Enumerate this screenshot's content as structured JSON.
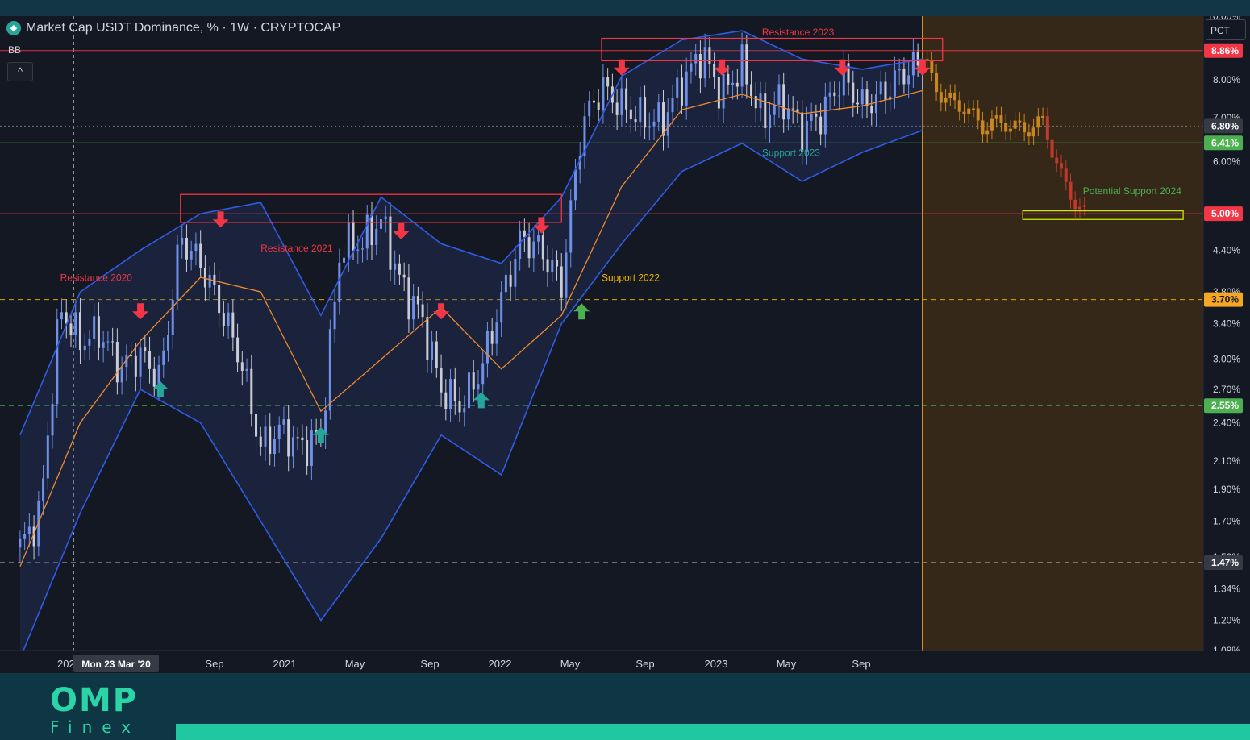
{
  "header": {
    "title": "Market Cap USDT Dominance, % · 1W · CRYPTOCAP",
    "indicator": "BB",
    "collapse_symbol": "^",
    "scale_button": "PCT",
    "logo_icon": "diamond-icon"
  },
  "brand": {
    "name": "OMP",
    "sub": "Finex"
  },
  "colors": {
    "background": "#141823",
    "bb_line": "#2f5ce6",
    "basis_line": "#f08a2e",
    "resistance": "#f23645",
    "support_green": "#4caf50",
    "support_teal": "#26a69a",
    "support_yellow": "#f0b400",
    "forecast_zone": "#3a2a17",
    "footer": "#0f3645",
    "footer_bar": "#21c7a1"
  },
  "chart_data": {
    "type": "line",
    "symbol": "USDT.D",
    "timeframe": "1W",
    "scale": "log",
    "ylim": [
      1.08,
      10.0
    ],
    "y_ticks": [
      "10.00%",
      "8.00%",
      "7.00%",
      "6.00%",
      "4.40%",
      "3.80%",
      "3.40%",
      "3.00%",
      "2.70%",
      "2.40%",
      "2.10%",
      "1.90%",
      "1.70%",
      "1.50%",
      "1.34%",
      "1.20%",
      "1.08%"
    ],
    "x_ticks": [
      "202",
      "Sep",
      "2021",
      "May",
      "Sep",
      "2022",
      "May",
      "Sep",
      "2023",
      "May",
      "Sep"
    ],
    "crosshair_label": "Mon 23 Mar '20",
    "price_series": {
      "name": "USDT Dominance",
      "x": [
        "2020-01",
        "2020-02",
        "2020-03",
        "2020-04",
        "2020-05",
        "2020-06",
        "2020-07",
        "2020-08",
        "2020-09",
        "2020-10",
        "2020-11",
        "2020-12",
        "2021-01",
        "2021-02",
        "2021-03",
        "2021-04",
        "2021-05",
        "2021-06",
        "2021-07",
        "2021-08",
        "2021-09",
        "2021-10",
        "2021-11",
        "2021-12",
        "2022-01",
        "2022-02",
        "2022-03",
        "2022-04",
        "2022-05",
        "2022-06",
        "2022-07",
        "2022-08",
        "2022-09",
        "2022-10",
        "2022-11",
        "2022-12",
        "2023-01",
        "2023-02",
        "2023-03",
        "2023-04",
        "2023-05",
        "2023-06",
        "2023-07",
        "2023-08",
        "2023-09",
        "2023-10"
      ],
      "y": [
        1.55,
        1.75,
        3.6,
        3.2,
        3.3,
        2.9,
        3.05,
        2.8,
        4.6,
        4.2,
        3.6,
        3.0,
        2.2,
        2.35,
        2.2,
        2.3,
        4.5,
        4.5,
        4.9,
        3.9,
        3.5,
        2.7,
        2.55,
        2.9,
        3.7,
        4.6,
        4.4,
        3.9,
        6.8,
        7.8,
        7.3,
        7.0,
        6.9,
        7.9,
        8.8,
        7.6,
        8.4,
        7.0,
        7.5,
        6.7,
        7.1,
        8.1,
        7.3,
        7.6,
        8.2,
        8.5
      ]
    },
    "forecast_series": {
      "name": "Forecast",
      "x": [
        "2023-10",
        "2023-11",
        "2023-12",
        "2024-01",
        "2024-02",
        "2024-03",
        "2024-04",
        "2024-05",
        "2024-06"
      ],
      "y": [
        8.6,
        7.5,
        7.3,
        6.8,
        6.9,
        6.7,
        6.9,
        5.6,
        5.0
      ]
    },
    "basis_series": {
      "name": "BB Basis",
      "x": [
        "2020-01",
        "2020-04",
        "2020-07",
        "2020-10",
        "2021-01",
        "2021-04",
        "2021-07",
        "2021-10",
        "2022-01",
        "2022-04",
        "2022-07",
        "2022-10",
        "2023-01",
        "2023-04",
        "2023-07",
        "2023-10"
      ],
      "y": [
        1.45,
        2.4,
        3.2,
        4.0,
        3.8,
        2.5,
        3.0,
        3.6,
        2.9,
        3.5,
        5.5,
        7.2,
        7.6,
        7.1,
        7.3,
        7.7
      ]
    },
    "bb_upper": {
      "name": "BB Upper",
      "x": [
        "2020-01",
        "2020-04",
        "2020-07",
        "2020-10",
        "2021-01",
        "2021-04",
        "2021-07",
        "2021-10",
        "2022-01",
        "2022-04",
        "2022-07",
        "2022-10",
        "2023-01",
        "2023-04",
        "2023-07",
        "2023-10"
      ],
      "y": [
        2.3,
        3.8,
        4.4,
        5.0,
        5.2,
        3.5,
        5.3,
        4.5,
        4.2,
        5.3,
        8.1,
        9.2,
        9.5,
        8.6,
        8.3,
        8.6
      ]
    },
    "bb_lower": {
      "name": "BB Lower",
      "x": [
        "2020-01",
        "2020-04",
        "2020-07",
        "2020-10",
        "2021-01",
        "2021-04",
        "2021-07",
        "2021-10",
        "2022-01",
        "2022-04",
        "2022-07",
        "2022-10",
        "2023-01",
        "2023-04",
        "2023-07",
        "2023-10"
      ],
      "y": [
        1.05,
        1.75,
        2.7,
        2.4,
        1.7,
        1.2,
        1.6,
        2.3,
        2.0,
        3.4,
        4.5,
        5.8,
        6.4,
        5.6,
        6.2,
        6.7
      ]
    },
    "horizontal_levels": [
      {
        "value": 8.86,
        "label": "8.86%",
        "style": "solid",
        "color": "#f23645"
      },
      {
        "value": 6.8,
        "label": "6.80%",
        "style": "dotted",
        "color": "#787b86"
      },
      {
        "value": 6.41,
        "label": "6.41%",
        "style": "solid",
        "color": "#4caf50"
      },
      {
        "value": 5.0,
        "label": "5.00%",
        "style": "solid",
        "color": "#f23645"
      },
      {
        "value": 3.7,
        "label": "3.70%",
        "style": "dashed",
        "color": "#f0b400"
      },
      {
        "value": 2.55,
        "label": "2.55%",
        "style": "dashed",
        "color": "#4caf50"
      },
      {
        "value": 1.47,
        "label": "1.47%",
        "style": "dashed",
        "color": "#d1d4dc"
      }
    ],
    "zones": [
      {
        "label": "Resistance 2021",
        "x0": "2020-09",
        "x1": "2022-04",
        "y0": 4.85,
        "y1": 5.35,
        "color": "#f23645"
      },
      {
        "label": "Resistance 2023",
        "x0": "2022-06",
        "x1": "2023-11",
        "y0": 8.55,
        "y1": 9.25,
        "color": "#f23645"
      },
      {
        "label": "Potential Support 2024",
        "x0": "2024-03",
        "x1": "2024-11",
        "y0": 4.9,
        "y1": 5.05,
        "color": "#c8e600"
      }
    ],
    "annotations": [
      {
        "text": "Resistance 2020",
        "x": "2020-03",
        "y": 3.95,
        "color": "#f23645"
      },
      {
        "text": "Resistance 2021",
        "x": "2021-01",
        "y": 4.38,
        "color": "#f23645"
      },
      {
        "text": "Resistance 2023",
        "x": "2023-02",
        "y": 9.35,
        "color": "#f23645"
      },
      {
        "text": "Support 2022",
        "x": "2022-06",
        "y": 3.95,
        "color": "#f0b400"
      },
      {
        "text": "Support 2023",
        "x": "2023-02",
        "y": 6.12,
        "color": "#26a69a"
      },
      {
        "text": "Potential Support 2024",
        "x": "2024-06",
        "y": 5.35,
        "color": "#4caf50"
      }
    ],
    "arrows": [
      {
        "dir": "down",
        "x": "2020-07",
        "y": 3.55,
        "color": "#f23645"
      },
      {
        "dir": "down",
        "x": "2020-11",
        "y": 4.9,
        "color": "#f23645"
      },
      {
        "dir": "down",
        "x": "2021-08",
        "y": 4.7,
        "color": "#f23645"
      },
      {
        "dir": "down",
        "x": "2021-10",
        "y": 3.55,
        "color": "#f23645"
      },
      {
        "dir": "down",
        "x": "2022-03",
        "y": 4.8,
        "color": "#f23645"
      },
      {
        "dir": "down",
        "x": "2022-07",
        "y": 8.35,
        "color": "#f23645"
      },
      {
        "dir": "down",
        "x": "2022-12",
        "y": 8.35,
        "color": "#f23645"
      },
      {
        "dir": "down",
        "x": "2023-06",
        "y": 8.35,
        "color": "#f23645"
      },
      {
        "dir": "down",
        "x": "2023-10",
        "y": 8.35,
        "color": "#f23645"
      },
      {
        "dir": "up",
        "x": "2020-08",
        "y": 2.7,
        "color": "#26a69a"
      },
      {
        "dir": "up",
        "x": "2021-04",
        "y": 2.3,
        "color": "#26a69a"
      },
      {
        "dir": "up",
        "x": "2021-12",
        "y": 2.6,
        "color": "#26a69a"
      },
      {
        "dir": "up",
        "x": "2022-05",
        "y": 3.55,
        "color": "#4caf50"
      }
    ],
    "forecast_region_start": "2023-10",
    "grid": false,
    "legend": "none"
  }
}
